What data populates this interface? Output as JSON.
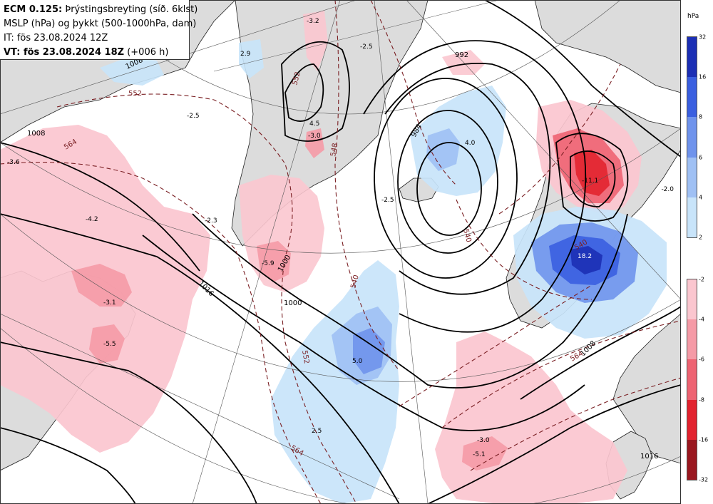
{
  "info": {
    "line1_bold": "ECM 0.125:",
    "line1_rest": " Þrýstingsbreyting (síð. 6klst)",
    "line2": "MSLP (hPa) og þykkt (500-1000hPa, dam)",
    "line3": "IT: fös 23.08.2024 12Z",
    "line4_bold": "VT: fös 23.08.2024 18Z",
    "line4_rest": " (+006 h)"
  },
  "legend": {
    "unit": "hPa",
    "positive": {
      "ticks": [
        "32",
        "16",
        "8",
        "6",
        "4",
        "2"
      ],
      "colors": [
        "#1c2fb5",
        "#3a5fe0",
        "#6f93ec",
        "#9fc0f4",
        "#c8e4fa"
      ]
    },
    "negative": {
      "ticks": [
        "-2",
        "-4",
        "-6",
        "-8",
        "-16",
        "-32"
      ],
      "colors": [
        "#fbc6cf",
        "#f59aa6",
        "#ee6372",
        "#e2232f",
        "#9a1820"
      ]
    }
  },
  "map": {
    "labels": {
      "v_m32_top": "-3.2",
      "v_29": "2.9",
      "v_m25_top": "-2.5",
      "v_m36": "-3.6",
      "v_m42": "-4.2",
      "v_m31": "-3.1",
      "v_m55": "-5.5",
      "v_m23": "-2.3",
      "v_m59": "-5.9",
      "v_m30_gr": "-3.0",
      "v_45": "4.5",
      "v_40": "4.0",
      "v_m111": "-11.1",
      "v_m20": "-2.0",
      "v_182": "18.2",
      "v_50": "5.0",
      "v_25": "2.5",
      "v_m51": "-5.1",
      "v_m30_s": "-3.0",
      "v_m25_ic": "-2.5",
      "v_m25_nw": "-2.5",
      "i_1000_a": "1000",
      "i_1000_b": "1000",
      "i_1008_a": "1008",
      "i_1008_b": "1008",
      "i_1008_c": "1008",
      "i_1016_a": "1016",
      "i_1016_b": "1016",
      "i_992": "992",
      "i_984": "984",
      "t_552_a": "552",
      "t_552_b": "552",
      "t_552_c": "552",
      "t_564_a": "564",
      "t_564_b": "564",
      "t_540_a": "540",
      "t_540_b": "540",
      "t_540_c": "540",
      "t_548": "548",
      "t_564_c": "564"
    }
  }
}
